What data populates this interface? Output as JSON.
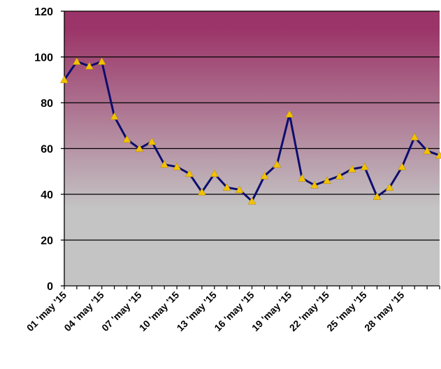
{
  "chart_data": {
    "type": "line",
    "title": "",
    "xlabel": "",
    "ylabel": "",
    "ylim": [
      0,
      120
    ],
    "yticks": [
      0,
      20,
      40,
      60,
      80,
      100,
      120
    ],
    "grid": true,
    "legend": "none",
    "x_tick_labels": [
      "01 'may '15",
      "04 'may '15",
      "07 'may '15",
      "10 'may '15",
      "13 'may '15",
      "16 'may '15",
      "19 'may '15",
      "22 'may '15",
      "25 'may '15",
      "28 'may '15"
    ],
    "categories": [
      "01 'may '15",
      "02 'may '15",
      "03 'may '15",
      "04 'may '15",
      "05 'may '15",
      "06 'may '15",
      "07 'may '15",
      "08 'may '15",
      "09 'may '15",
      "10 'may '15",
      "11 'may '15",
      "12 'may '15",
      "13 'may '15",
      "14 'may '15",
      "15 'may '15",
      "16 'may '15",
      "17 'may '15",
      "18 'may '15",
      "19 'may '15",
      "20 'may '15",
      "21 'may '15",
      "22 'may '15",
      "23 'may '15",
      "24 'may '15",
      "25 'may '15",
      "26 'may '15",
      "27 'may '15",
      "28 'may '15",
      "29 'may '15",
      "30 'may '15",
      "31 'may '15"
    ],
    "series": [
      {
        "values": [
          90,
          98,
          96,
          98,
          74,
          64,
          60,
          63,
          53,
          52,
          49,
          41,
          49,
          43,
          42,
          37,
          48,
          53,
          75,
          47,
          44,
          46,
          48,
          51,
          52,
          39,
          43,
          52,
          65,
          59,
          57
        ]
      }
    ],
    "colors": {
      "line": "#0d0d6e",
      "marker": "#f2c200",
      "background_top": "#9b3468",
      "background_bottom": "#c4c4c4",
      "grid": "#000000"
    }
  }
}
